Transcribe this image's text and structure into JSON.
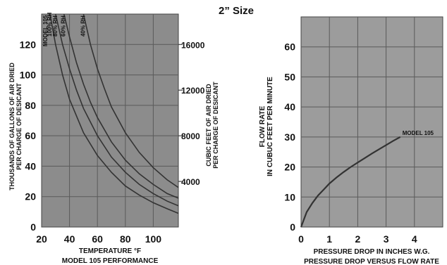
{
  "page_title": "2” Size",
  "colors": {
    "plot_bg_left": "#8c8c8c",
    "plot_bg_right": "#9c9c9c",
    "grid": "#5a5a5a",
    "curve": "#333333"
  },
  "chart_data": [
    {
      "type": "line",
      "model_label": "MODEL 105",
      "xlabel": "TEMPERATURE °F",
      "caption": "MODEL 105 PERFORMANCE",
      "ylabel_line1": "THOUSANDS OF GALLONS OF AIR DRIED",
      "ylabel_line2": "PER CHARGE OF DESICANT",
      "y2label_line1": "CUBIC FEET OF AIR DRIED",
      "y2label_line2": "PER CHARGE OF DESICANT",
      "xlim": [
        20,
        118
      ],
      "ylim": [
        0,
        140
      ],
      "x_ticks": [
        20,
        40,
        60,
        80,
        100
      ],
      "y_ticks": [
        0,
        20,
        40,
        60,
        80,
        100,
        120
      ],
      "y2_ticks": [
        {
          "label": "4000",
          "value": 30
        },
        {
          "label": "8000",
          "value": 60
        },
        {
          "label": "12000",
          "value": 90
        },
        {
          "label": "16000",
          "value": 120
        }
      ],
      "grid": true,
      "series": [
        {
          "name": "100% RH",
          "x": [
            26,
            30,
            35,
            40,
            50,
            60,
            70,
            80,
            90,
            100,
            110,
            118
          ],
          "y": [
            140,
            120,
            100,
            84,
            62,
            47,
            36,
            27,
            21,
            16,
            12,
            9
          ]
        },
        {
          "name": "80% RH",
          "x": [
            30,
            35,
            40,
            45,
            50,
            60,
            70,
            80,
            90,
            100,
            110,
            118
          ],
          "y": [
            140,
            120,
            104,
            90,
            78,
            60,
            46,
            36,
            28,
            22,
            17,
            14
          ]
        },
        {
          "name": "60% RH",
          "x": [
            36,
            40,
            45,
            50,
            55,
            60,
            70,
            80,
            90,
            100,
            110,
            118
          ],
          "y": [
            140,
            125,
            108,
            94,
            82,
            72,
            56,
            44,
            35,
            28,
            22,
            19
          ]
        },
        {
          "name": "40% RH",
          "x": [
            50,
            55,
            60,
            65,
            70,
            80,
            90,
            100,
            110,
            118
          ],
          "y": [
            140,
            120,
            104,
            91,
            79,
            62,
            49,
            39,
            31,
            26
          ]
        }
      ]
    },
    {
      "type": "line",
      "xlabel": "PRESSURE DROP IN INCHES W.G.",
      "caption": "PRESSURE DROP VERSUS FLOW RATE",
      "ylabel_line1": "FLOW RATE",
      "ylabel_line2": "IN CUBUC FEET PER MINUTE",
      "xlim": [
        0,
        5
      ],
      "ylim": [
        0,
        70
      ],
      "x_ticks": [
        0,
        1,
        2,
        3,
        4
      ],
      "y_ticks": [
        0,
        10,
        20,
        30,
        40,
        50,
        60
      ],
      "grid": true,
      "series": [
        {
          "name": "MODEL 105",
          "x": [
            0,
            0.2,
            0.4,
            0.6,
            0.8,
            1.0,
            1.25,
            1.5,
            1.75,
            2.0,
            2.25,
            2.5,
            2.75,
            3.0,
            3.25,
            3.5
          ],
          "y": [
            0,
            5,
            8,
            10.5,
            12.5,
            14.5,
            16.5,
            18.3,
            20,
            21.5,
            23,
            24.5,
            25.9,
            27.3,
            28.7,
            30
          ]
        }
      ]
    }
  ]
}
